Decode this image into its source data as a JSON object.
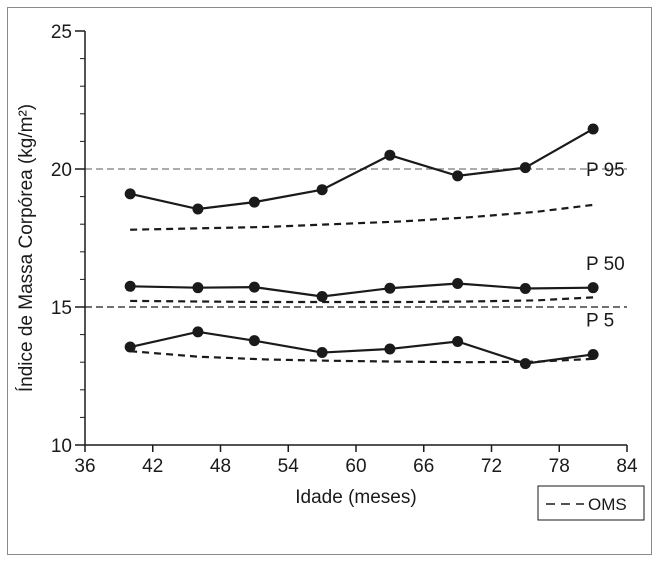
{
  "chart_data": {
    "type": "line",
    "title": "",
    "xlabel": "Idade (meses)",
    "ylabel": "Índice de Massa Corpórea (kg/m²)",
    "xlim": [
      36,
      84
    ],
    "ylim": [
      10,
      25
    ],
    "x_ticks": [
      36,
      42,
      48,
      54,
      60,
      66,
      72,
      78,
      84
    ],
    "y_ticks": [
      10,
      15,
      20,
      25
    ],
    "y_minor_step": 1,
    "grid": false,
    "reference_lines": [
      {
        "y": 20,
        "style": "dashed-gray"
      },
      {
        "y": 15,
        "style": "dashed-black"
      }
    ],
    "series": [
      {
        "name": "P 95",
        "x": [
          40,
          46,
          51,
          57,
          63,
          69,
          75,
          81
        ],
        "values": [
          19.1,
          18.55,
          18.8,
          19.25,
          20.5,
          19.75,
          20.05,
          21.45
        ],
        "style": "solid-markers"
      },
      {
        "name": "P 50",
        "x": [
          40,
          46,
          51,
          57,
          63,
          69,
          75,
          81
        ],
        "values": [
          15.75,
          15.7,
          15.72,
          15.38,
          15.68,
          15.85,
          15.67,
          15.7
        ],
        "style": "solid-markers"
      },
      {
        "name": "P 5",
        "x": [
          40,
          46,
          51,
          57,
          63,
          69,
          75,
          81
        ],
        "values": [
          13.55,
          14.1,
          13.78,
          13.35,
          13.48,
          13.75,
          12.95,
          13.28
        ],
        "style": "solid-markers"
      },
      {
        "name": "",
        "group": "OMS",
        "x": [
          40,
          46,
          52,
          58,
          64,
          70,
          76,
          81
        ],
        "values": [
          17.8,
          17.85,
          17.9,
          18.0,
          18.1,
          18.25,
          18.45,
          18.7
        ],
        "style": "dashed"
      },
      {
        "name": "",
        "group": "OMS",
        "x": [
          40,
          46,
          52,
          58,
          64,
          70,
          76,
          81
        ],
        "values": [
          15.22,
          15.2,
          15.18,
          15.18,
          15.18,
          15.2,
          15.24,
          15.35
        ],
        "style": "dashed"
      },
      {
        "name": "",
        "group": "OMS",
        "x": [
          40,
          46,
          52,
          58,
          64,
          70,
          76,
          81
        ],
        "values": [
          13.4,
          13.2,
          13.1,
          13.05,
          13.02,
          13.0,
          13.02,
          13.12
        ],
        "style": "dashed"
      }
    ],
    "legend": {
      "placement": "bottom-right",
      "entries": [
        {
          "label": "OMS",
          "style": "dashed"
        }
      ]
    },
    "colors": {
      "line": "#1a1a1a",
      "ref_gray": "#7a7a7a",
      "frame": "#8a8a8a"
    }
  }
}
